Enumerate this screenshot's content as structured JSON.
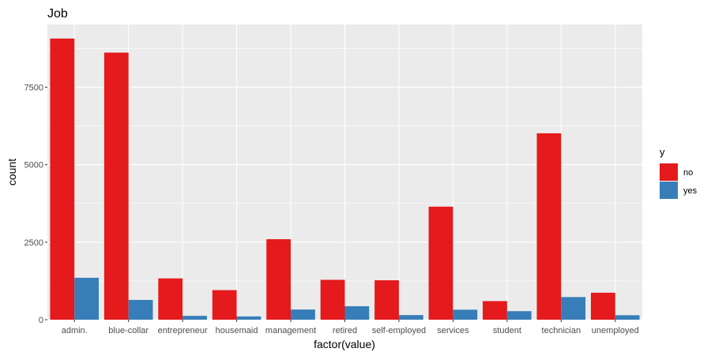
{
  "chart_data": {
    "type": "bar",
    "title": "Job",
    "xlabel": "factor(value)",
    "ylabel": "count",
    "categories": [
      "admin.",
      "blue-collar",
      "entrepreneur",
      "housemaid",
      "management",
      "retired",
      "self-employed",
      "services",
      "student",
      "technician",
      "unemployed"
    ],
    "series": [
      {
        "name": "no",
        "color": "#E41A1C",
        "values": [
          9070,
          8616,
          1332,
          954,
          2596,
          1286,
          1272,
          3646,
          600,
          6013,
          870
        ]
      },
      {
        "name": "yes",
        "color": "#377EB8",
        "values": [
          1352,
          638,
          124,
          106,
          328,
          434,
          149,
          323,
          275,
          730,
          144
        ]
      }
    ],
    "ylim": [
      0,
      9524
    ],
    "yticks": [
      0,
      2500,
      5000,
      7500
    ],
    "ytick_labels": [
      "0",
      "2500",
      "5000",
      "7500"
    ],
    "grid": true,
    "legend": {
      "title": "y",
      "position": "right"
    },
    "panel_background": "#EBEBEB",
    "grid_color": "#FFFFFF"
  }
}
